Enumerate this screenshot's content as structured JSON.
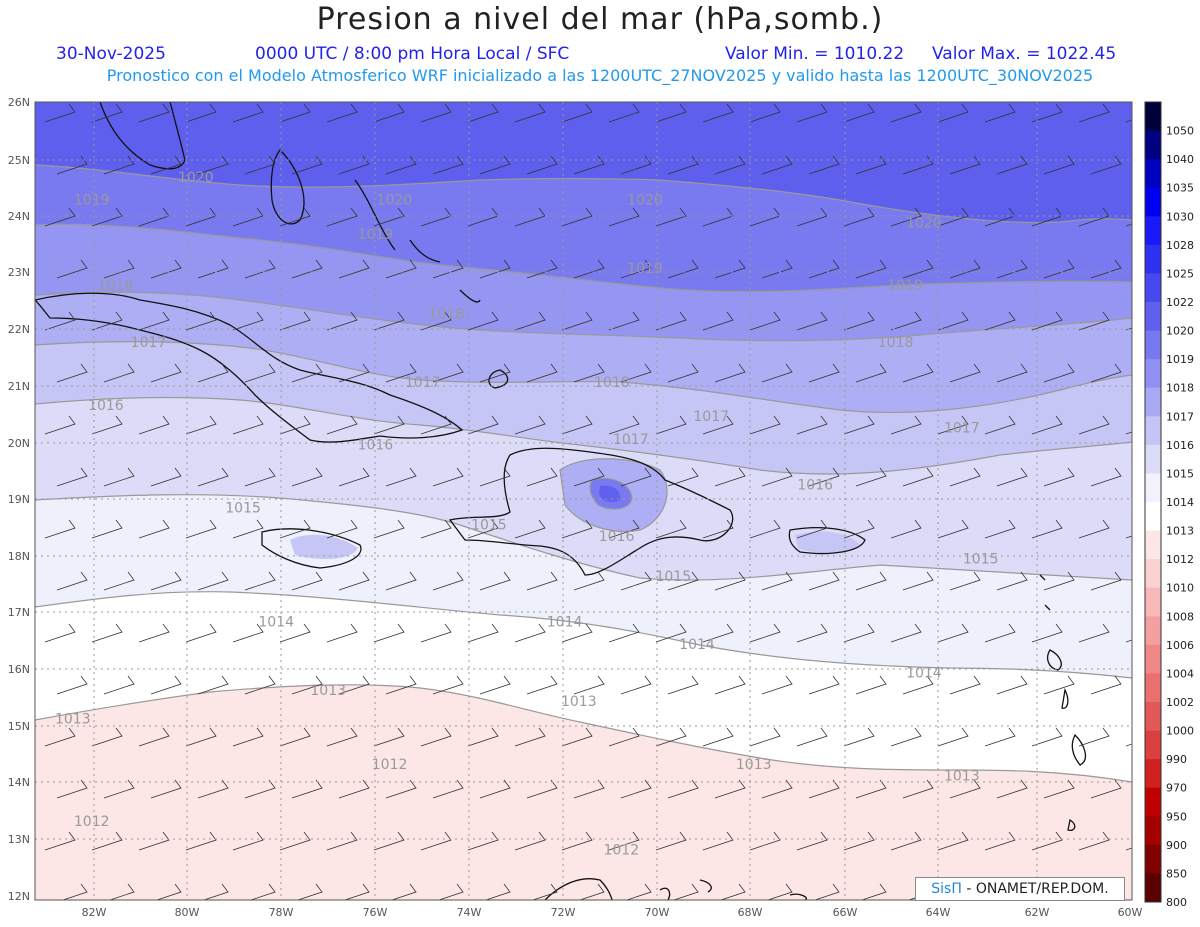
{
  "header": {
    "title": "Presion a nivel del mar (hPa,somb.)",
    "date": "30-Nov-2025",
    "time": "0000 UTC / 8:00 pm Hora Local / SFC",
    "vmin": "Valor Min. = 1010.22",
    "vmax": "Valor Max. = 1022.45",
    "info": "Pronostico con el Modelo Atmosferico WRF inicializado a las 1200UTC_27NOV2025 y valido hasta las  1200UTC_30NOV2025"
  },
  "map": {
    "lat_labels": [
      "26N",
      "25N",
      "24N",
      "23N",
      "22N",
      "21N",
      "20N",
      "19N",
      "18N",
      "17N",
      "16N",
      "15N",
      "14N",
      "13N",
      "12N"
    ],
    "lon_labels": [
      "82W",
      "80W",
      "78W",
      "76W",
      "74W",
      "72W",
      "70W",
      "68W",
      "66W",
      "64W",
      "62W",
      "60W"
    ],
    "lat_range": [
      12,
      26
    ],
    "lon_range": [
      -83.2,
      -60
    ],
    "contours": [
      {
        "value": "1020",
        "lon": -79.8,
        "lat": 24.6
      },
      {
        "value": "1020",
        "lon": -75.6,
        "lat": 24.2
      },
      {
        "value": "1020",
        "lon": -70.3,
        "lat": 24.2
      },
      {
        "value": "1020",
        "lon": -64.4,
        "lat": 23.8
      },
      {
        "value": "1019",
        "lon": -82.0,
        "lat": 24.2
      },
      {
        "value": "1019",
        "lon": -70.3,
        "lat": 23.0
      },
      {
        "value": "1019",
        "lon": -64.8,
        "lat": 22.7
      },
      {
        "value": "1019",
        "lon": -76.0,
        "lat": 23.6
      },
      {
        "value": "1018",
        "lon": -81.5,
        "lat": 22.7
      },
      {
        "value": "1018",
        "lon": -74.5,
        "lat": 22.2
      },
      {
        "value": "1018",
        "lon": -71.0,
        "lat": 21.0
      },
      {
        "value": "1018",
        "lon": -65.0,
        "lat": 21.7
      },
      {
        "value": "1017",
        "lon": -80.8,
        "lat": 21.7
      },
      {
        "value": "1017",
        "lon": -75.0,
        "lat": 21.0
      },
      {
        "value": "1017",
        "lon": -70.6,
        "lat": 20.0
      },
      {
        "value": "1017",
        "lon": -68.9,
        "lat": 20.4
      },
      {
        "value": "1017",
        "lon": -63.6,
        "lat": 20.2
      },
      {
        "value": "1016",
        "lon": -81.7,
        "lat": 20.6
      },
      {
        "value": "1016",
        "lon": -76.0,
        "lat": 19.9
      },
      {
        "value": "1016",
        "lon": -66.7,
        "lat": 19.2
      },
      {
        "value": "1016",
        "lon": -70.9,
        "lat": 18.3
      },
      {
        "value": "1015",
        "lon": -78.8,
        "lat": 18.8
      },
      {
        "value": "1015",
        "lon": -73.6,
        "lat": 18.5
      },
      {
        "value": "1015",
        "lon": -69.7,
        "lat": 17.6
      },
      {
        "value": "1015",
        "lon": -63.2,
        "lat": 17.9
      },
      {
        "value": "1014",
        "lon": -78.1,
        "lat": 16.8
      },
      {
        "value": "1014",
        "lon": -72.0,
        "lat": 16.8
      },
      {
        "value": "1014",
        "lon": -69.2,
        "lat": 16.4
      },
      {
        "value": "1014",
        "lon": -64.4,
        "lat": 15.9
      },
      {
        "value": "1013",
        "lon": -82.4,
        "lat": 15.1
      },
      {
        "value": "1013",
        "lon": -77.0,
        "lat": 15.6
      },
      {
        "value": "1013",
        "lon": -71.7,
        "lat": 15.4
      },
      {
        "value": "1013",
        "lon": -68.0,
        "lat": 14.3
      },
      {
        "value": "1013",
        "lon": -63.6,
        "lat": 14.1
      },
      {
        "value": "1012",
        "lon": -75.7,
        "lat": 14.3
      },
      {
        "value": "1012",
        "lon": -82.0,
        "lat": 13.3
      },
      {
        "value": "1012",
        "lon": -70.8,
        "lat": 12.8
      }
    ],
    "credit_logo": "SisΠ",
    "credit_text": " - ONAMET/REP.DOM."
  },
  "legend": {
    "labels": [
      "1050",
      "1040",
      "1035",
      "1030",
      "1028",
      "1025",
      "1022",
      "1020",
      "1019",
      "1018",
      "1017",
      "1016",
      "1015",
      "1014",
      "1013",
      "1012",
      "1010",
      "1008",
      "1006",
      "1004",
      "1002",
      "1000",
      "990",
      "970",
      "950",
      "900",
      "850",
      "800"
    ],
    "colors": [
      "#00003a",
      "#000080",
      "#0000c0",
      "#0000f0",
      "#1a1af8",
      "#3030f0",
      "#4848ee",
      "#6060ee",
      "#7878f0",
      "#9090f2",
      "#a8a8f4",
      "#c4c4f6",
      "#dcdcf8",
      "#f2f2fc",
      "#ffffff",
      "#fde6e6",
      "#fbd0d0",
      "#f8b8b8",
      "#f5a0a0",
      "#f08888",
      "#ea7070",
      "#e35858",
      "#db4040",
      "#d02020",
      "#c00000",
      "#a50000",
      "#800000",
      "#5a0000"
    ],
    "band_colors": {
      "b1020": "#5f5fee",
      "b1019": "#7a7af0",
      "b1018": "#9595f2",
      "b1017": "#aeaef4",
      "b1016": "#c6c6f6",
      "b1015": "#dcdcf8",
      "b1014": "#eef0fb",
      "b1013": "#ffffff",
      "b1012": "#fde6e6"
    }
  }
}
